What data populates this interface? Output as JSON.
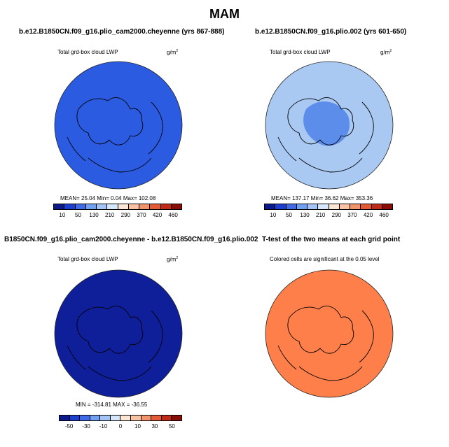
{
  "title": "MAM",
  "panels": [
    {
      "title": "b.e12.B1850CN.f09_g16.plio_cam2000.cheyenne (yrs 867-888)",
      "subtitle": "Total grd-box cloud LWP",
      "units": "g/m",
      "units_exp": "2",
      "stats": "MEAN=   25.04   Min=    0.04   Max=  102.08",
      "fill": "#2b5be0",
      "ticks": [
        "10",
        "50",
        "130",
        "210",
        "290",
        "370",
        "420",
        "460"
      ]
    },
    {
      "title": "b.e12.B1850CN.f09_g16.plio.002 (yrs 601-650)",
      "subtitle": "Total grd-box cloud LWP",
      "units": "g/m",
      "units_exp": "2",
      "stats": "MEAN=  137.17   Min=   36.62   Max=  353.36",
      "fill": "#a9c9f3",
      "ticks": [
        "10",
        "50",
        "130",
        "210",
        "290",
        "370",
        "420",
        "460"
      ]
    },
    {
      "title": "B1850CN.f09_g16.plio_cam2000.cheyenne - b.e12.B1850CN.f09_g16.plio.002",
      "subtitle": "Total grd-box cloud LWP",
      "units": "g/m",
      "units_exp": "2",
      "stats": "MIN = -314.81  MAX = -36.55",
      "fill": "#0f1f9a",
      "ticks": [
        "-50",
        "-30",
        "-10",
        "0",
        "10",
        "30",
        "50"
      ]
    },
    {
      "title": "T-test of the two means at each grid point",
      "subtitle": "Colored cells are significant at the 0.05 level",
      "fill": "#ff7f4a"
    }
  ],
  "colorbar_colors": [
    "#0a1a8c",
    "#1d3fd0",
    "#3f6ce6",
    "#6fa0f2",
    "#a3c4f7",
    "#d6e6fb",
    "#fbe6d6",
    "#f8c2a3",
    "#f2936a",
    "#e35a36",
    "#c22a18",
    "#8a0c06"
  ]
}
